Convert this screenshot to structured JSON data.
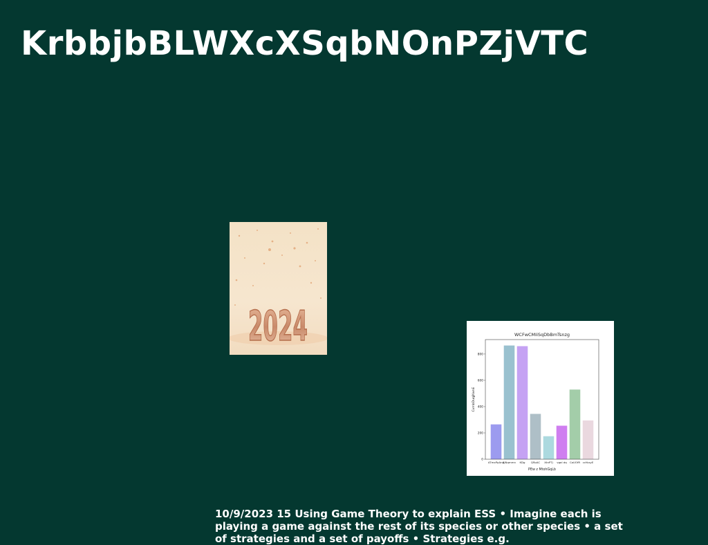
{
  "slide": {
    "title": "KrbbjbBLWXcXSqbNOnPZjVTC",
    "photo_caption": "2024",
    "body_text": "10/9/2023 15 Using Game Theory to explain ESS • Imagine each is playing a game against the rest of its species or other species • a set of strategies and a set of payoffs • Strategies e.g."
  },
  "chart_data": {
    "type": "bar",
    "title": "WCFwCMIiSqDbBmTsnzg",
    "xlabel": "PEw z MtohGqLb",
    "ylabel": "CvmbDuqjKwnE",
    "categories": [
      "ATmxPpAng",
      "SjNqmmn",
      "KDg",
      "QPpAC",
      "XtnPTj",
      "vgal dq",
      "CaUOfR",
      "cxYusyE"
    ],
    "values": [
      265,
      865,
      860,
      345,
      175,
      255,
      530,
      295
    ],
    "colors": [
      "#9c9bef",
      "#9ac1cf",
      "#c5a2f3",
      "#aebfc7",
      "#acd9df",
      "#cf7ef0",
      "#a3cda9",
      "#ead8df"
    ],
    "yticks": [
      0,
      200,
      400,
      600,
      800
    ],
    "ylim": [
      0,
      910
    ],
    "grid": false
  }
}
